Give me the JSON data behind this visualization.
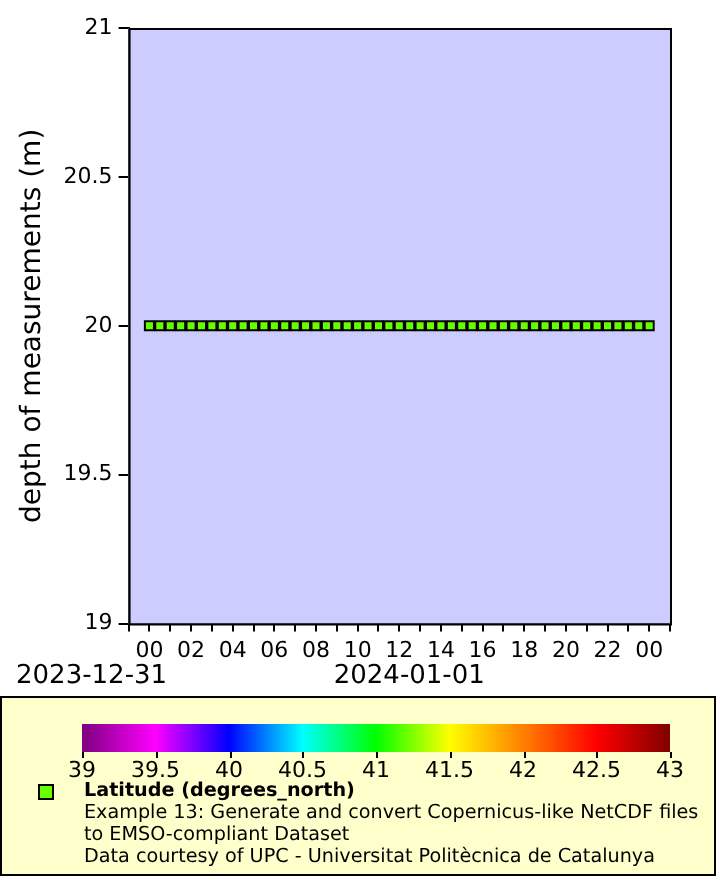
{
  "chart_data": {
    "type": "scatter",
    "ylabel": "depth of measurements (m)",
    "clabel": "Latitude (degrees_north)",
    "x": [
      0,
      0.5,
      1,
      1.5,
      2,
      2.5,
      3,
      3.5,
      4,
      4.5,
      5,
      5.5,
      6,
      6.5,
      7,
      7.5,
      8,
      8.5,
      9,
      9.5,
      10,
      10.5,
      11,
      11.5,
      12,
      12.5,
      13,
      13.5,
      14,
      14.5,
      15,
      15.5,
      16,
      16.5,
      17,
      17.5,
      18,
      18.5,
      19,
      19.5,
      20,
      20.5,
      21,
      21.5,
      22,
      22.5,
      23,
      23.5,
      24
    ],
    "values": [
      20,
      20,
      20,
      20,
      20,
      20,
      20,
      20,
      20,
      20,
      20,
      20,
      20,
      20,
      20,
      20,
      20,
      20,
      20,
      20,
      20,
      20,
      20,
      20,
      20,
      20,
      20,
      20,
      20,
      20,
      20,
      20,
      20,
      20,
      20,
      20,
      20,
      20,
      20,
      20,
      20,
      20,
      20,
      20,
      20,
      20,
      20,
      20,
      20
    ],
    "cvalues": [
      41.2,
      41.2,
      41.2,
      41.2,
      41.2,
      41.2,
      41.2,
      41.2,
      41.2,
      41.2,
      41.2,
      41.2,
      41.2,
      41.2,
      41.2,
      41.2,
      41.2,
      41.2,
      41.2,
      41.2,
      41.2,
      41.2,
      41.2,
      41.2,
      41.2,
      41.2,
      41.2,
      41.2,
      41.2,
      41.2,
      41.2,
      41.2,
      41.2,
      41.2,
      41.2,
      41.2,
      41.2,
      41.2,
      41.2,
      41.2,
      41.2,
      41.2,
      41.2,
      41.2,
      41.2,
      41.2,
      41.2,
      41.2,
      41.2
    ],
    "marker": "square",
    "grid": false,
    "xlim": [
      -1,
      25
    ],
    "xticks": [
      {
        "value": -1,
        "label": null
      },
      {
        "value": 0,
        "label": "00"
      },
      {
        "value": 1,
        "label": null
      },
      {
        "value": 2,
        "label": "02"
      },
      {
        "value": 3,
        "label": null
      },
      {
        "value": 4,
        "label": "04"
      },
      {
        "value": 5,
        "label": null
      },
      {
        "value": 6,
        "label": "06"
      },
      {
        "value": 7,
        "label": null
      },
      {
        "value": 8,
        "label": "08"
      },
      {
        "value": 9,
        "label": null
      },
      {
        "value": 10,
        "label": "10"
      },
      {
        "value": 11,
        "label": null
      },
      {
        "value": 12,
        "label": "12"
      },
      {
        "value": 13,
        "label": null
      },
      {
        "value": 14,
        "label": "14"
      },
      {
        "value": 15,
        "label": null
      },
      {
        "value": 16,
        "label": "16"
      },
      {
        "value": 17,
        "label": null
      },
      {
        "value": 18,
        "label": "18"
      },
      {
        "value": 19,
        "label": null
      },
      {
        "value": 20,
        "label": "20"
      },
      {
        "value": 21,
        "label": null
      },
      {
        "value": 22,
        "label": "22"
      },
      {
        "value": 23,
        "label": null
      },
      {
        "value": 24,
        "label": "00"
      },
      {
        "value": 25,
        "label": null
      }
    ],
    "ylim": [
      19,
      21
    ],
    "yticks": [
      19,
      19.5,
      20,
      20.5,
      21
    ],
    "clim": [
      39,
      43
    ],
    "cticks": [
      39,
      39.5,
      40,
      40.5,
      41,
      41.5,
      42,
      42.5,
      43
    ],
    "annotations": [
      "2023-12-31",
      "2024-01-01",
      "Example 13: Generate and convert Copernicus-like NetCDF files to EMSO-compliant Dataset",
      "Data courtesy of UPC - Universitat Politècnica de Catalunya"
    ]
  }
}
